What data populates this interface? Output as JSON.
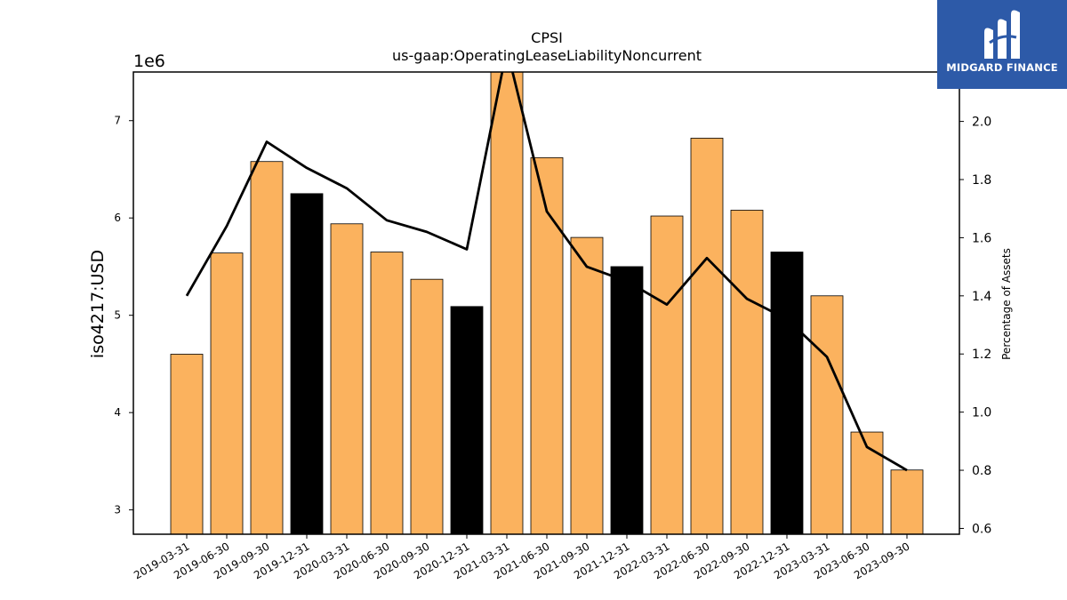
{
  "chart_data": {
    "type": "bar",
    "title": "CPSI",
    "subtitle": "us-gaap:OperatingLeaseLiabilityNoncurrent",
    "ylabel": "iso4217:USD",
    "y2label": "Percentage of Assets",
    "y_scale_label": "1e6",
    "categories": [
      "2019-03-31",
      "2019-06-30",
      "2019-09-30",
      "2019-12-31",
      "2020-03-31",
      "2020-06-30",
      "2020-09-30",
      "2020-12-31",
      "2021-03-31",
      "2021-06-30",
      "2021-09-30",
      "2021-12-31",
      "2022-03-31",
      "2022-06-30",
      "2022-09-30",
      "2022-12-31",
      "2023-03-31",
      "2023-06-30",
      "2023-09-30"
    ],
    "values": [
      4.6,
      5.64,
      6.58,
      6.25,
      5.94,
      5.65,
      5.37,
      5.09,
      7.52,
      6.62,
      5.8,
      5.5,
      6.02,
      6.82,
      6.08,
      5.65,
      5.2,
      3.8,
      3.41
    ],
    "highlight": [
      false,
      false,
      false,
      true,
      false,
      false,
      false,
      true,
      false,
      false,
      false,
      true,
      false,
      false,
      false,
      true,
      false,
      false,
      false
    ],
    "line_series": {
      "axis": "right",
      "values": [
        1.4,
        1.64,
        1.93,
        1.84,
        1.77,
        1.66,
        1.62,
        1.56,
        2.25,
        1.69,
        1.5,
        1.45,
        1.37,
        1.53,
        1.39,
        1.32,
        1.19,
        0.88,
        0.8
      ]
    },
    "ylim": [
      2.75,
      7.5
    ],
    "yticks": [
      "3",
      "4",
      "5",
      "6",
      "7"
    ],
    "y2lim": [
      0.58,
      2.17
    ],
    "y2ticks": [
      "0.6",
      "0.8",
      "1.0",
      "1.2",
      "1.4",
      "1.6",
      "1.8",
      "2.0"
    ],
    "colors": {
      "bar": "#fbb25e",
      "highlight_bar": "#000000",
      "line": "#000000"
    },
    "grid": false
  },
  "logo": {
    "text": "MIDGARD FINANCE",
    "icon": "midgard-logo-icon",
    "background": "#2d5aa8"
  }
}
